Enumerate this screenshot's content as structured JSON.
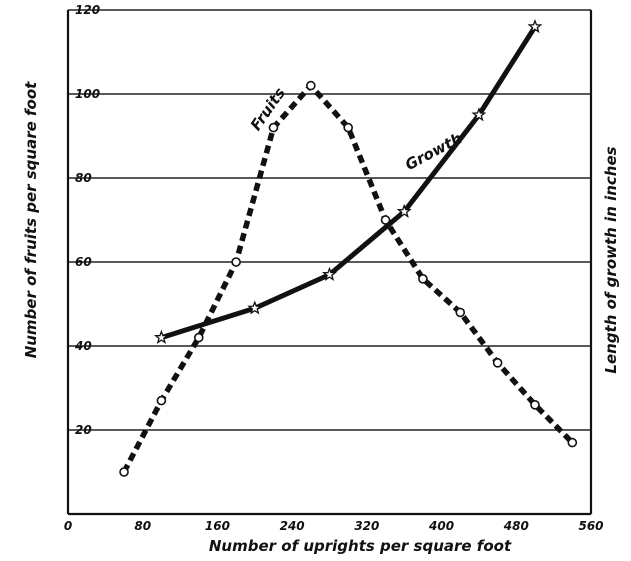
{
  "chart_data": {
    "type": "line",
    "xlabel": "Number of uprights per square foot",
    "ylabel_left": "Number of fruits per square foot",
    "ylabel_right": "Length of growth in inches",
    "xlim": [
      0,
      560
    ],
    "ylim": [
      0,
      120
    ],
    "x_ticks": [
      0,
      80,
      160,
      240,
      320,
      400,
      480,
      560
    ],
    "y_ticks": [
      20,
      40,
      60,
      80,
      100,
      120
    ],
    "grid": "horizontal",
    "series": [
      {
        "name": "Fruits",
        "style": "dashed",
        "marker": "circle",
        "x": [
          60,
          100,
          140,
          180,
          220,
          260,
          300,
          340,
          380,
          420,
          460,
          500,
          540
        ],
        "y": [
          10,
          27,
          42,
          60,
          92,
          102,
          92,
          70,
          56,
          48,
          36,
          26,
          17
        ]
      },
      {
        "name": "Growth",
        "style": "solid",
        "marker": "star",
        "x": [
          100,
          200,
          280,
          360,
          440,
          500
        ],
        "y": [
          42,
          49,
          57,
          72,
          95,
          116
        ]
      }
    ]
  }
}
